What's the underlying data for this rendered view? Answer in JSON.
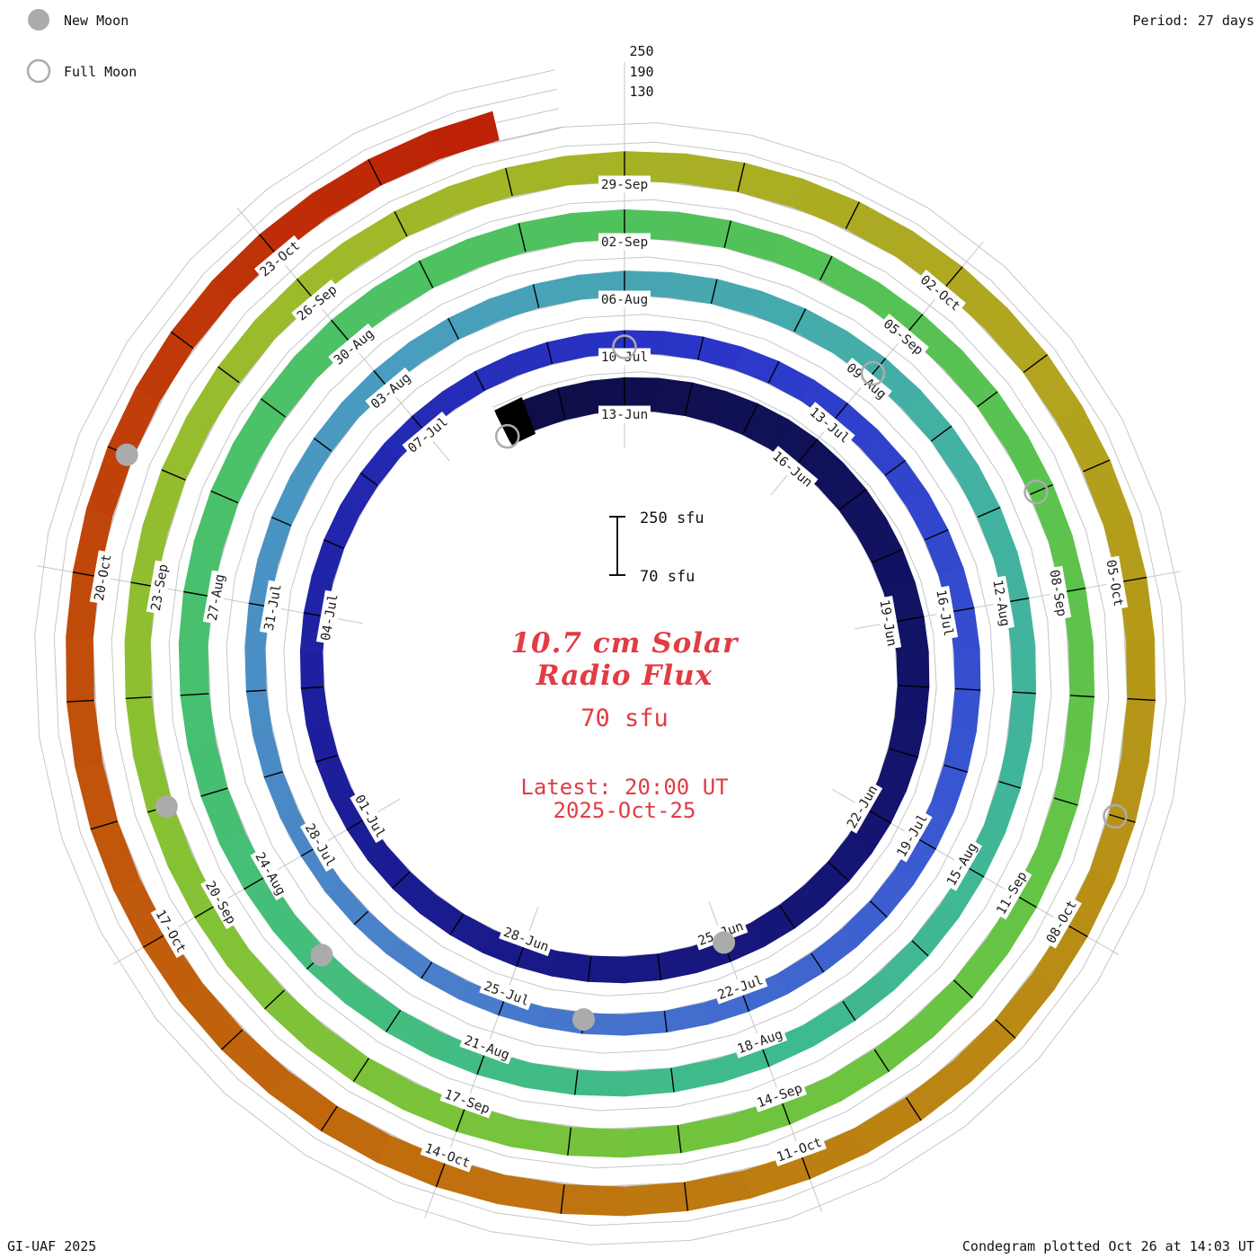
{
  "legend": {
    "new_moon": "New Moon",
    "full_moon": "Full Moon"
  },
  "period_label": "Period: 27 days",
  "credit": "GI-UAF 2025",
  "footer": "Condegram plotted Oct 26 at 14:03 UT",
  "radial_axis": {
    "labels": [
      "250",
      "190",
      "130"
    ]
  },
  "center": {
    "title_line1": "10.7 cm Solar",
    "title_line2": "Radio Flux",
    "baseline_label": "70 sfu",
    "latest_line1": "Latest: 20:00 UT",
    "latest_line2": "2025-Oct-25",
    "scalebar_top": "250 sfu",
    "scalebar_bottom": "70 sfu"
  },
  "chart_data": {
    "type": "spiral-condegram",
    "title": "10.7 cm Solar Radio Flux",
    "period_days": 27,
    "baseline_sfu": 70,
    "radial_gridlines_sfu": [
      130,
      190,
      250
    ],
    "angular_axis": "date, one revolution = 27 days, clockwise from top",
    "radial_axis": "10.7 cm radio flux (sfu), band thickness above 70 sfu baseline",
    "label_every_days": 3,
    "start_date": "11-Jun",
    "latest": "2025-Oct-25 20:00 UT",
    "day_range": [
      -2,
      134
    ],
    "points": [
      {
        "date": "11-Jun",
        "day": -2,
        "sfu": 168
      },
      {
        "date": "13-Jun",
        "day": 0,
        "sfu": 172
      },
      {
        "date": "16-Jun",
        "day": 3,
        "sfu": 178
      },
      {
        "date": "19-Jun",
        "day": 6,
        "sfu": 170
      },
      {
        "date": "22-Jun",
        "day": 9,
        "sfu": 161
      },
      {
        "date": "25-Jun",
        "day": 12,
        "sfu": 152
      },
      {
        "date": "28-Jun",
        "day": 15,
        "sfu": 148
      },
      {
        "date": "01-Jul",
        "day": 18,
        "sfu": 142
      },
      {
        "date": "04-Jul",
        "day": 21,
        "sfu": 138
      },
      {
        "date": "07-Jul",
        "day": 24,
        "sfu": 134
      },
      {
        "date": "10-Jul",
        "day": 27,
        "sfu": 140
      },
      {
        "date": "13-Jul",
        "day": 30,
        "sfu": 146
      },
      {
        "date": "16-Jul",
        "day": 33,
        "sfu": 150
      },
      {
        "date": "19-Jul",
        "day": 36,
        "sfu": 144
      },
      {
        "date": "22-Jul",
        "day": 39,
        "sfu": 138
      },
      {
        "date": "25-Jul",
        "day": 42,
        "sfu": 131
      },
      {
        "date": "28-Jul",
        "day": 45,
        "sfu": 128
      },
      {
        "date": "31-Jul",
        "day": 48,
        "sfu": 133
      },
      {
        "date": "03-Aug",
        "day": 51,
        "sfu": 140
      },
      {
        "date": "06-Aug",
        "day": 54,
        "sfu": 146
      },
      {
        "date": "09-Aug",
        "day": 57,
        "sfu": 150
      },
      {
        "date": "12-Aug",
        "day": 60,
        "sfu": 144
      },
      {
        "date": "15-Aug",
        "day": 63,
        "sfu": 138
      },
      {
        "date": "18-Aug",
        "day": 66,
        "sfu": 142
      },
      {
        "date": "21-Aug",
        "day": 69,
        "sfu": 148
      },
      {
        "date": "24-Aug",
        "day": 72,
        "sfu": 154
      },
      {
        "date": "27-Aug",
        "day": 75,
        "sfu": 160
      },
      {
        "date": "30-Aug",
        "day": 78,
        "sfu": 166
      },
      {
        "date": "02-Sep",
        "day": 81,
        "sfu": 158
      },
      {
        "date": "05-Sep",
        "day": 84,
        "sfu": 150
      },
      {
        "date": "08-Sep",
        "day": 87,
        "sfu": 144
      },
      {
        "date": "11-Sep",
        "day": 90,
        "sfu": 148
      },
      {
        "date": "14-Sep",
        "day": 93,
        "sfu": 154
      },
      {
        "date": "17-Sep",
        "day": 96,
        "sfu": 158
      },
      {
        "date": "20-Sep",
        "day": 99,
        "sfu": 152
      },
      {
        "date": "23-Sep",
        "day": 102,
        "sfu": 148
      },
      {
        "date": "26-Sep",
        "day": 105,
        "sfu": 154
      },
      {
        "date": "29-Sep",
        "day": 108,
        "sfu": 160
      },
      {
        "date": "02-Oct",
        "day": 111,
        "sfu": 164
      },
      {
        "date": "05-Oct",
        "day": 114,
        "sfu": 158
      },
      {
        "date": "08-Oct",
        "day": 117,
        "sfu": 152
      },
      {
        "date": "11-Oct",
        "day": 120,
        "sfu": 156
      },
      {
        "date": "14-Oct",
        "day": 123,
        "sfu": 162
      },
      {
        "date": "17-Oct",
        "day": 126,
        "sfu": 158
      },
      {
        "date": "20-Oct",
        "day": 129,
        "sfu": 152
      },
      {
        "date": "23-Oct",
        "day": 132,
        "sfu": 156
      },
      {
        "date": "25-Oct",
        "day": 134,
        "sfu": 160
      }
    ],
    "moons": {
      "new": [
        {
          "date": "25-Jun",
          "day": 12
        },
        {
          "date": "24-Jul",
          "day": 41
        },
        {
          "date": "23-Aug",
          "day": 71
        },
        {
          "date": "21-Sep",
          "day": 100
        },
        {
          "date": "21-Oct",
          "day": 130
        }
      ],
      "full": [
        {
          "date": "11-Jun",
          "day": -2
        },
        {
          "date": "10-Jul",
          "day": 27
        },
        {
          "date": "09-Aug",
          "day": 57
        },
        {
          "date": "07-Sep",
          "day": 86
        },
        {
          "date": "07-Oct",
          "day": 116
        }
      ]
    },
    "colors": {
      "grid": "#c6c6c6",
      "moon": "#ababab",
      "accent_red": "#e23c44",
      "band_stops": [
        [
          0.0,
          "#0e0e46"
        ],
        [
          0.1,
          "#16167a"
        ],
        [
          0.16,
          "#1d1f9e"
        ],
        [
          0.22,
          "#2a35c8"
        ],
        [
          0.28,
          "#3a5ad2"
        ],
        [
          0.33,
          "#4a7fca"
        ],
        [
          0.39,
          "#4a9cc0"
        ],
        [
          0.44,
          "#43b0a4"
        ],
        [
          0.5,
          "#3eba8e"
        ],
        [
          0.56,
          "#48c070"
        ],
        [
          0.62,
          "#52c258"
        ],
        [
          0.68,
          "#66c444"
        ],
        [
          0.74,
          "#82c236"
        ],
        [
          0.79,
          "#9eba2a"
        ],
        [
          0.84,
          "#b2a41e"
        ],
        [
          0.88,
          "#ba8a14"
        ],
        [
          0.92,
          "#c06e0e"
        ],
        [
          0.96,
          "#c04c0a"
        ],
        [
          1.0,
          "#bd1f06"
        ]
      ]
    }
  }
}
